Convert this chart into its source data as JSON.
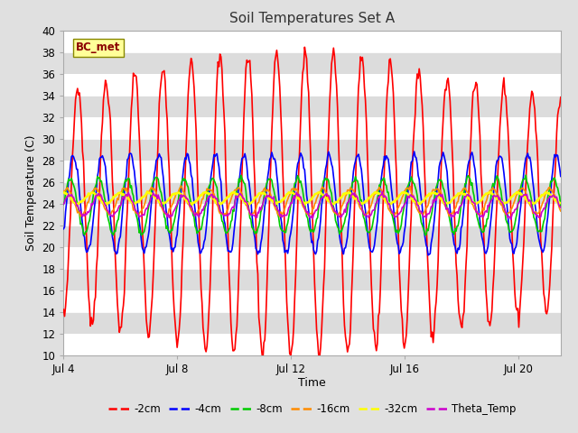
{
  "title": "Soil Temperatures Set A",
  "xlabel": "Time",
  "ylabel": "Soil Temperature (C)",
  "ylim": [
    10,
    40
  ],
  "xlim_days": [
    0,
    17.5
  ],
  "annotation": "BC_met",
  "annotation_color": "#8B0000",
  "annotation_bg": "#FFFF99",
  "annotation_edge": "#888800",
  "series": {
    "-2cm": {
      "color": "#FF0000",
      "lw": 1.2
    },
    "-4cm": {
      "color": "#0000FF",
      "lw": 1.2
    },
    "-8cm": {
      "color": "#00CC00",
      "lw": 1.2
    },
    "-16cm": {
      "color": "#FF8C00",
      "lw": 1.2
    },
    "-32cm": {
      "color": "#FFFF00",
      "lw": 1.8
    },
    "Theta_Temp": {
      "color": "#CC00CC",
      "lw": 1.2
    }
  },
  "legend_order": [
    "-2cm",
    "-4cm",
    "-8cm",
    "-16cm",
    "-32cm",
    "Theta_Temp"
  ],
  "bg_color": "#E0E0E0",
  "plot_bg_white": "#FFFFFF",
  "plot_bg_gray": "#DCDCDC",
  "yticks": [
    10,
    12,
    14,
    16,
    18,
    20,
    22,
    24,
    26,
    28,
    30,
    32,
    34,
    36,
    38,
    40
  ],
  "num_points": 500,
  "x_tick_positions": [
    0,
    4,
    8,
    12,
    16
  ],
  "x_tick_labels": [
    "Jul 4",
    "Jul 8",
    "Jul 12",
    "Jul 16",
    "Jul 20"
  ]
}
